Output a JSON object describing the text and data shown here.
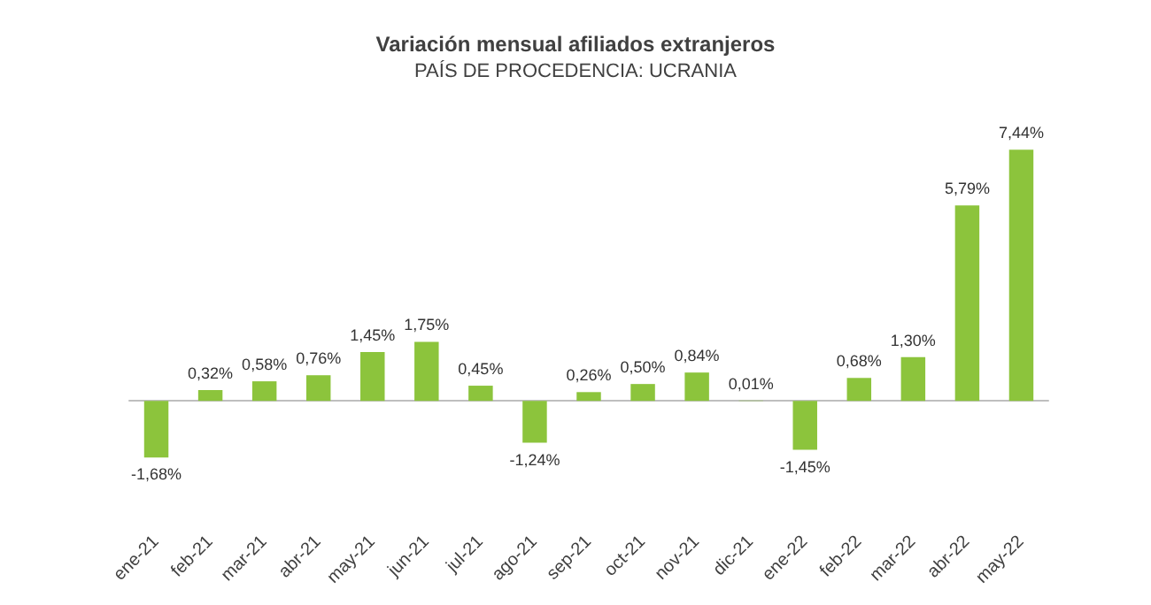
{
  "chart_data": {
    "type": "bar",
    "title": "Variación mensual afiliados extranjeros",
    "subtitle": "PAÍS DE PROCEDENCIA: UCRANIA",
    "categories": [
      "ene-21",
      "feb-21",
      "mar-21",
      "abr-21",
      "may-21",
      "jun-21",
      "jul-21",
      "ago-21",
      "sep-21",
      "oct-21",
      "nov-21",
      "dic-21",
      "ene-22",
      "feb-22",
      "mar-22",
      "abr-22",
      "may-22"
    ],
    "values": [
      -1.68,
      0.32,
      0.58,
      0.76,
      1.45,
      1.75,
      0.45,
      -1.24,
      0.26,
      0.5,
      0.84,
      0.01,
      -1.45,
      0.68,
      1.3,
      5.79,
      7.44
    ],
    "value_labels": [
      "-1,68%",
      "0,32%",
      "0,58%",
      "0,76%",
      "1,45%",
      "1,75%",
      "0,45%",
      "-1,24%",
      "0,26%",
      "0,50%",
      "0,84%",
      "0,01%",
      "-1,45%",
      "0,68%",
      "1,30%",
      "5,79%",
      "7,44%"
    ],
    "color": "#8cc43c",
    "grid": false
  }
}
